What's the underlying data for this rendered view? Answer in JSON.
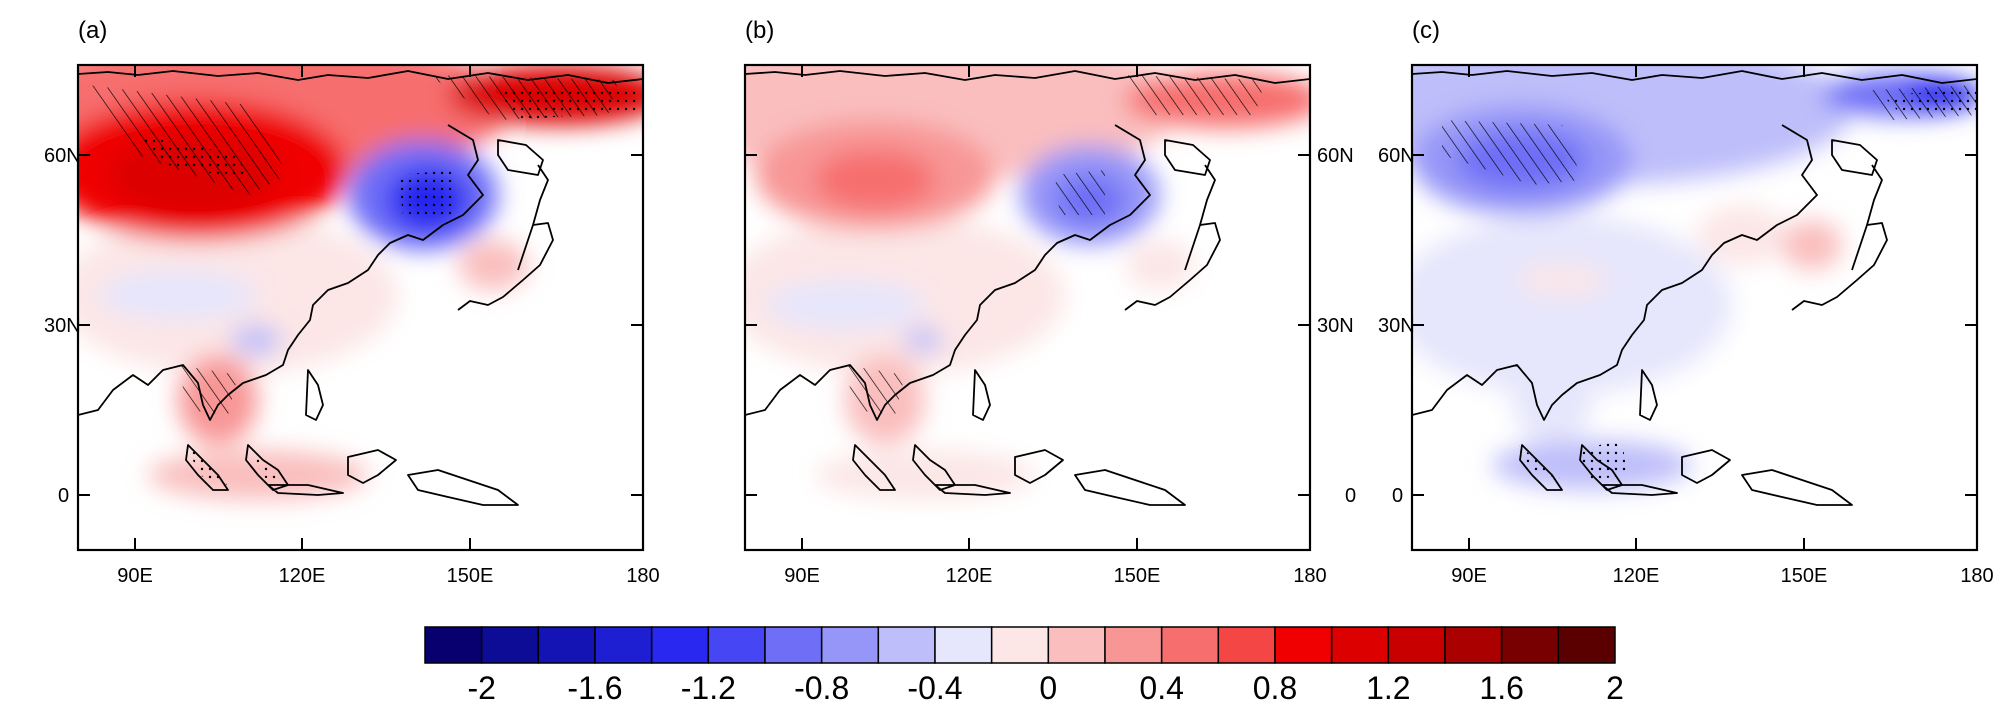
{
  "panels": [
    {
      "label": "(a)",
      "lat_labels": [
        "60N",
        "30N",
        "0"
      ],
      "lon_labels": [
        "90E",
        "120E",
        "150E",
        "180"
      ],
      "anomaly_regions": [
        {
          "name": "siberia-warm",
          "value": 1.4
        },
        {
          "name": "north-siberia-warm",
          "value": 1.0
        },
        {
          "name": "northeast-siberia-warm",
          "value": 1.2
        },
        {
          "name": "okhotsk-cold",
          "value": -1.0
        },
        {
          "name": "china-mixed",
          "value": 0.2
        },
        {
          "name": "tibet-cool",
          "value": -0.2
        },
        {
          "name": "indochina-warm",
          "value": 0.6
        },
        {
          "name": "maritime-warm",
          "value": 0.6
        },
        {
          "name": "japan-warm",
          "value": 0.4
        }
      ]
    },
    {
      "label": "(b)",
      "lat_labels": [
        "60N",
        "30N",
        "0"
      ],
      "lon_labels": [
        "90E",
        "120E",
        "150E",
        "180"
      ],
      "anomaly_regions": [
        {
          "name": "siberia-warm",
          "value": 0.8
        },
        {
          "name": "north-siberia-warm",
          "value": 0.4
        },
        {
          "name": "northeast-siberia-warm",
          "value": 0.8
        },
        {
          "name": "okhotsk-cold",
          "value": -0.8
        },
        {
          "name": "china-mixed",
          "value": 0.2
        },
        {
          "name": "tibet-cool",
          "value": -0.2
        },
        {
          "name": "indochina-warm",
          "value": 0.4
        },
        {
          "name": "maritime-warm",
          "value": 0.2
        },
        {
          "name": "japan-warm",
          "value": 0.2
        }
      ]
    },
    {
      "label": "(c)",
      "lat_labels": [
        "60N",
        "30N",
        "0"
      ],
      "lon_labels": [
        "90E",
        "120E",
        "150E",
        "180"
      ],
      "anomaly_regions": [
        {
          "name": "siberia-cold",
          "value": -0.8
        },
        {
          "name": "north-siberia-cold",
          "value": -0.4
        },
        {
          "name": "northeast-siberia-cold",
          "value": -0.8
        },
        {
          "name": "china-mixed",
          "value": -0.1
        },
        {
          "name": "manchuria-warm",
          "value": 0.2
        },
        {
          "name": "indochina-cool",
          "value": -0.2
        },
        {
          "name": "maritime-cool",
          "value": -0.4
        },
        {
          "name": "japan-warm",
          "value": 0.4
        }
      ]
    }
  ],
  "colorbar": {
    "labels": [
      "-2",
      "-1.6",
      "-1.2",
      "-0.8",
      "-0.4",
      "0",
      "0.4",
      "0.8",
      "1.2",
      "1.6",
      "2"
    ],
    "colors": [
      "#08006e",
      "#0c0c96",
      "#1414b4",
      "#1e1ed2",
      "#2828f0",
      "#4646f5",
      "#6e6ef7",
      "#9696f8",
      "#bebefa",
      "#e6e6fc",
      "#fce6e6",
      "#fabebe",
      "#f89696",
      "#f76e6e",
      "#f54646",
      "#f00000",
      "#dc0000",
      "#c80000",
      "#aa0000",
      "#780000",
      "#5a0000"
    ]
  }
}
